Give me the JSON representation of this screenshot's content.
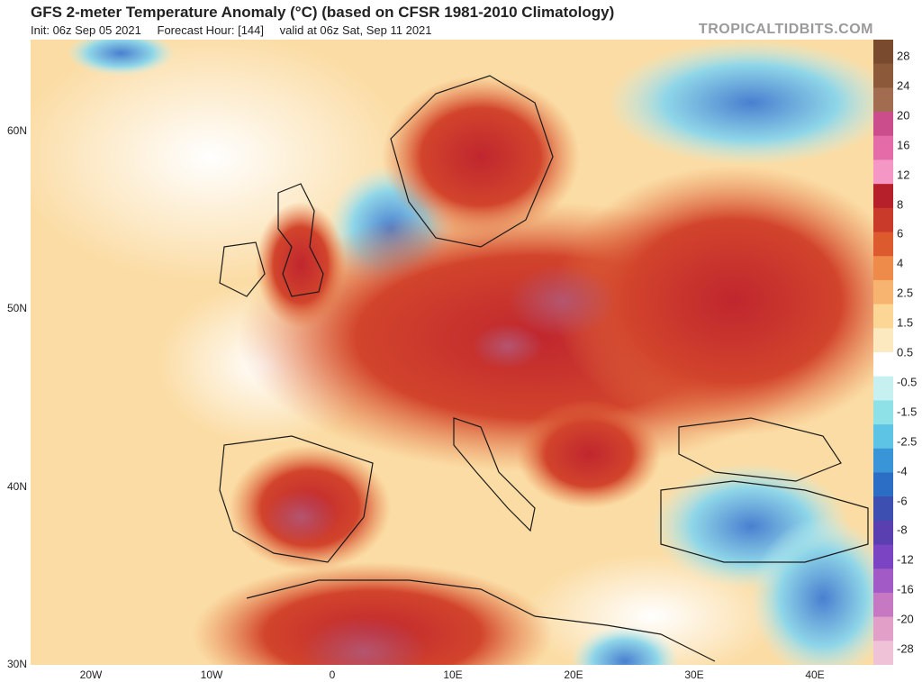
{
  "header": {
    "title": "GFS 2-meter Temperature Anomaly (°C) (based on CFSR 1981-2010 Climatology)",
    "init": "Init: 06z Sep 05 2021",
    "forecast_hour": "Forecast Hour: [144]",
    "valid": "valid at 06z Sat, Sep 11 2021",
    "brand": "TROPICALTIDBITS.COM"
  },
  "axes": {
    "lat_labels": [
      "60N",
      "50N",
      "40N",
      "30N"
    ],
    "lon_labels": [
      "20W",
      "10W",
      "0",
      "10E",
      "20E",
      "30E",
      "40E"
    ]
  },
  "colorbar": {
    "labels": [
      "28",
      "24",
      "20",
      "16",
      "12",
      "8",
      "6",
      "4",
      "2.5",
      "1.5",
      "0.5",
      "-0.5",
      "-1.5",
      "-2.5",
      "-4",
      "-6",
      "-8",
      "-12",
      "-16",
      "-20",
      "-28"
    ],
    "colors": [
      "#7a4a2e",
      "#8c5a3a",
      "#a26c50",
      "#cc4d8c",
      "#e56aa8",
      "#f597c5",
      "#b5202a",
      "#c93a2a",
      "#dd5a2e",
      "#ee8a4a",
      "#f6b470",
      "#fbd695",
      "#fde9bf",
      "#ffffff",
      "#c7f1f1",
      "#8fe1e8",
      "#5ec4e6",
      "#3a95d8",
      "#2c6ec5",
      "#3d4fb0",
      "#5a3fb0",
      "#7a44c2",
      "#a25ac6",
      "#c679c2",
      "#e2a0c9",
      "#efc2d8"
    ]
  },
  "chart_data": {
    "type": "heatmap",
    "title": "GFS 2-meter Temperature Anomaly (°C) (based on CFSR 1981-2010 Climatology)",
    "extent": {
      "lon": [
        -25,
        45
      ],
      "lat": [
        30,
        65
      ]
    },
    "colorbar_range": [
      -28,
      28
    ],
    "grid": false,
    "legend": "right"
  }
}
